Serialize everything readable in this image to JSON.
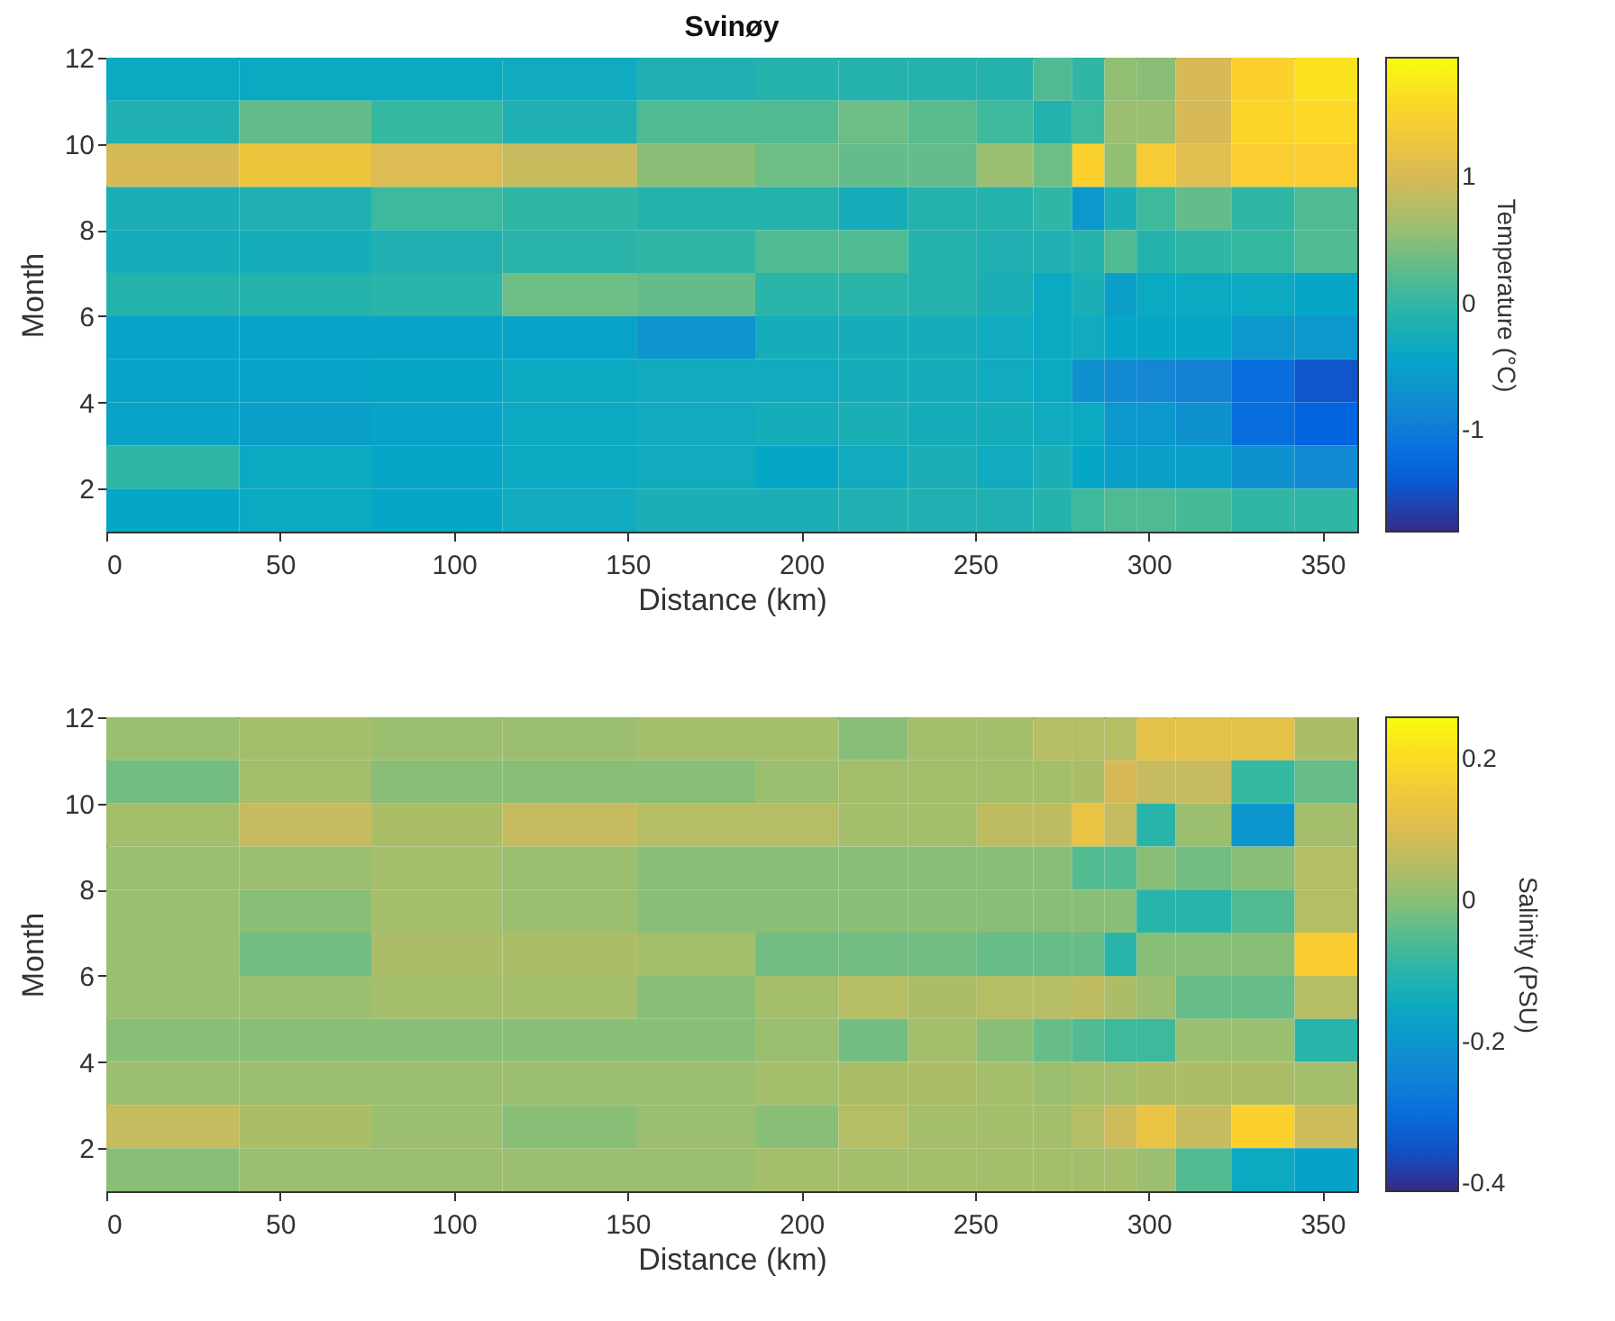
{
  "chart_data": [
    {
      "type": "heatmap",
      "title": "Svinøy",
      "xlabel": "Distance (km)",
      "ylabel": "Month",
      "clabel": "Temperature (°C)",
      "x": [
        19,
        57.5,
        95,
        133,
        172.5,
        201,
        220.5,
        241,
        260,
        273.5,
        282.5,
        292,
        301,
        314.5,
        333,
        351
      ],
      "y": [
        11.5,
        10.5,
        9.5,
        8.5,
        7.5,
        6.5,
        5.5,
        4.5,
        3.5,
        2.5,
        1.5
      ],
      "cells": [
        [
          -0.35,
          -0.35,
          -0.35,
          -0.3,
          -0.15,
          -0.1,
          -0.1,
          -0.1,
          -0.1,
          0.2,
          0.0,
          0.55,
          0.5,
          1.0,
          1.5,
          1.7
        ],
        [
          -0.15,
          0.3,
          0.05,
          -0.15,
          0.2,
          0.2,
          0.35,
          0.25,
          0.1,
          -0.1,
          0.1,
          0.6,
          0.6,
          1.0,
          1.55,
          1.6
        ],
        [
          1.0,
          1.3,
          1.05,
          0.9,
          0.5,
          0.35,
          0.3,
          0.3,
          0.6,
          0.35,
          1.5,
          0.55,
          1.4,
          1.1,
          1.45,
          1.45
        ],
        [
          -0.2,
          -0.15,
          0.1,
          0.0,
          -0.1,
          -0.1,
          -0.25,
          -0.1,
          -0.1,
          0.0,
          -0.6,
          -0.2,
          0.1,
          0.3,
          0.0,
          0.2
        ],
        [
          -0.25,
          -0.25,
          -0.15,
          -0.05,
          0.0,
          0.2,
          0.2,
          -0.1,
          -0.15,
          -0.15,
          -0.1,
          0.2,
          -0.1,
          0.0,
          0.05,
          0.2
        ],
        [
          -0.1,
          -0.1,
          -0.05,
          0.35,
          0.3,
          -0.05,
          -0.05,
          -0.1,
          -0.2,
          -0.35,
          -0.2,
          -0.5,
          -0.35,
          -0.35,
          -0.35,
          -0.4
        ],
        [
          -0.45,
          -0.45,
          -0.45,
          -0.45,
          -0.65,
          -0.25,
          -0.25,
          -0.25,
          -0.3,
          -0.35,
          -0.3,
          -0.4,
          -0.4,
          -0.4,
          -0.6,
          -0.6
        ],
        [
          -0.45,
          -0.45,
          -0.4,
          -0.35,
          -0.3,
          -0.3,
          -0.25,
          -0.25,
          -0.3,
          -0.35,
          -0.7,
          -0.8,
          -0.85,
          -0.9,
          -1.2,
          -1.45
        ],
        [
          -0.45,
          -0.5,
          -0.45,
          -0.35,
          -0.3,
          -0.25,
          -0.2,
          -0.25,
          -0.25,
          -0.3,
          -0.35,
          -0.6,
          -0.6,
          -0.7,
          -1.2,
          -1.3
        ],
        [
          0.0,
          -0.35,
          -0.4,
          -0.35,
          -0.3,
          -0.4,
          -0.3,
          -0.2,
          -0.3,
          -0.2,
          -0.4,
          -0.5,
          -0.5,
          -0.5,
          -0.7,
          -0.8
        ],
        [
          -0.4,
          -0.35,
          -0.4,
          -0.3,
          -0.2,
          -0.2,
          -0.15,
          -0.15,
          -0.15,
          -0.1,
          0.1,
          0.2,
          0.2,
          0.15,
          0.0,
          0.0
        ]
      ],
      "clim": [
        -1.8,
        1.95
      ],
      "cticks": [
        -1,
        0,
        1
      ],
      "xlim": [
        0,
        360
      ],
      "xticks": [
        0,
        50,
        100,
        150,
        200,
        250,
        300,
        350
      ],
      "ylim": [
        1,
        12
      ],
      "yticks": [
        2,
        4,
        6,
        8,
        10,
        12
      ]
    },
    {
      "type": "heatmap",
      "xlabel": "Distance (km)",
      "ylabel": "Month",
      "clabel": "Salinity (PSU)",
      "x": [
        19,
        57.5,
        95,
        133,
        172.5,
        201,
        220.5,
        241,
        260,
        273.5,
        282.5,
        292,
        301,
        314.5,
        333,
        351
      ],
      "y": [
        11.5,
        10.5,
        9.5,
        8.5,
        7.5,
        6.5,
        5.5,
        4.5,
        3.5,
        2.5,
        1.5
      ],
      "cells": [
        [
          0.02,
          0.03,
          0.02,
          0.02,
          0.03,
          0.03,
          0.0,
          0.03,
          0.03,
          0.05,
          0.05,
          0.05,
          0.12,
          0.12,
          0.12,
          0.04
        ],
        [
          -0.02,
          0.03,
          0.0,
          0.0,
          0.0,
          0.02,
          0.03,
          0.03,
          0.03,
          0.03,
          0.04,
          0.09,
          0.07,
          0.07,
          -0.08,
          -0.03
        ],
        [
          0.03,
          0.07,
          0.04,
          0.07,
          0.05,
          0.05,
          0.03,
          0.03,
          0.06,
          0.06,
          0.13,
          0.07,
          -0.1,
          0.02,
          -0.2,
          0.03
        ],
        [
          0.02,
          0.02,
          0.03,
          0.02,
          0.0,
          0.0,
          0.0,
          0.0,
          0.0,
          0.0,
          -0.05,
          -0.05,
          0.0,
          -0.02,
          0.0,
          0.05
        ],
        [
          0.02,
          0.0,
          0.03,
          0.02,
          0.0,
          0.0,
          0.0,
          0.0,
          0.0,
          0.0,
          0.0,
          0.0,
          -0.1,
          -0.1,
          -0.05,
          0.05
        ],
        [
          0.02,
          -0.02,
          0.04,
          0.04,
          0.03,
          -0.02,
          -0.02,
          -0.02,
          -0.03,
          -0.03,
          -0.03,
          -0.1,
          0.0,
          0.0,
          0.0,
          0.17
        ],
        [
          0.02,
          0.02,
          0.03,
          0.03,
          0.0,
          0.03,
          0.05,
          0.04,
          0.05,
          0.05,
          0.06,
          0.04,
          0.02,
          -0.03,
          -0.03,
          0.05
        ],
        [
          0.0,
          0.0,
          0.0,
          0.0,
          0.0,
          0.02,
          -0.02,
          0.03,
          0.0,
          -0.03,
          -0.05,
          -0.07,
          -0.07,
          0.02,
          0.02,
          -0.1
        ],
        [
          0.02,
          0.02,
          0.02,
          0.02,
          0.02,
          0.03,
          0.04,
          0.04,
          0.03,
          0.02,
          0.03,
          0.03,
          0.04,
          0.04,
          0.04,
          0.03
        ],
        [
          0.07,
          0.04,
          0.02,
          0.0,
          0.02,
          0.0,
          0.05,
          0.03,
          0.03,
          0.03,
          0.05,
          0.08,
          0.13,
          0.07,
          0.18,
          0.08
        ],
        [
          0.0,
          0.02,
          0.02,
          0.02,
          0.02,
          0.03,
          0.03,
          0.03,
          0.03,
          0.03,
          0.03,
          0.03,
          0.02,
          -0.05,
          -0.15,
          -0.17
        ]
      ],
      "clim": [
        -0.41,
        0.26
      ],
      "cticks": [
        -0.4,
        -0.2,
        0,
        0.2
      ],
      "xlim": [
        0,
        360
      ],
      "xticks": [
        0,
        50,
        100,
        150,
        200,
        250,
        300,
        350
      ],
      "ylim": [
        1,
        12
      ],
      "yticks": [
        2,
        4,
        6,
        8,
        10,
        12
      ]
    }
  ]
}
